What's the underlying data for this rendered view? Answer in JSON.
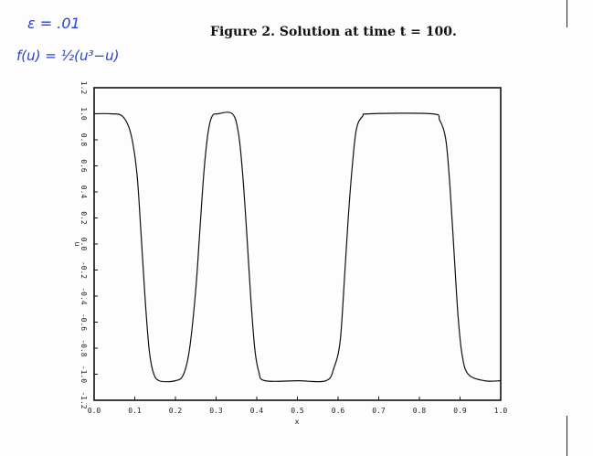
{
  "annotations": {
    "handwritten_epsilon": "ε = .01",
    "handwritten_f": "f(u) = ½(u³−u)"
  },
  "figure": {
    "title": "Figure 2. Solution at time t = 100."
  },
  "colors": {
    "ink": "#111111",
    "handwriting": "#2b3fd1",
    "paper": "#fdfdfd"
  },
  "chart_data": {
    "type": "line",
    "xlabel": "x",
    "ylabel": "u",
    "xlim": [
      0.0,
      1.0
    ],
    "ylim": [
      -1.2,
      1.2
    ],
    "x_ticks": [
      "0.0",
      "0.1",
      "0.2",
      "0.3",
      "0.4",
      "0.5",
      "0.6",
      "0.7",
      "0.8",
      "0.9",
      "1.0"
    ],
    "y_ticks": [
      "-1.2",
      "-1.0",
      "-0.8",
      "-0.6",
      "-0.4",
      "-0.2",
      "0.0",
      "0.2",
      "0.4",
      "0.6",
      "0.8",
      "1.0",
      "1.2"
    ],
    "grid": false,
    "series": [
      {
        "x": [
          0.0,
          0.04,
          0.07,
          0.09,
          0.105,
          0.115,
          0.125,
          0.135,
          0.145,
          0.16,
          0.2,
          0.22,
          0.235,
          0.25,
          0.26,
          0.27,
          0.28,
          0.29,
          0.305,
          0.34,
          0.355,
          0.365,
          0.375,
          0.385,
          0.395,
          0.405,
          0.42,
          0.5,
          0.57,
          0.59,
          0.605,
          0.615,
          0.625,
          0.635,
          0.645,
          0.66,
          0.68,
          0.83,
          0.85,
          0.865,
          0.875,
          0.885,
          0.895,
          0.905,
          0.92,
          0.96,
          1.0
        ],
        "y": [
          1.0,
          1.0,
          0.98,
          0.85,
          0.55,
          0.1,
          -0.4,
          -0.8,
          -0.98,
          -1.05,
          -1.05,
          -1.0,
          -0.8,
          -0.35,
          0.1,
          0.55,
          0.85,
          0.98,
          1.0,
          1.0,
          0.85,
          0.55,
          0.1,
          -0.4,
          -0.8,
          -0.98,
          -1.05,
          -1.05,
          -1.05,
          -0.95,
          -0.75,
          -0.3,
          0.2,
          0.6,
          0.88,
          0.98,
          1.0,
          1.0,
          0.95,
          0.8,
          0.45,
          -0.05,
          -0.55,
          -0.85,
          -1.0,
          -1.05,
          -1.05
        ]
      }
    ]
  }
}
